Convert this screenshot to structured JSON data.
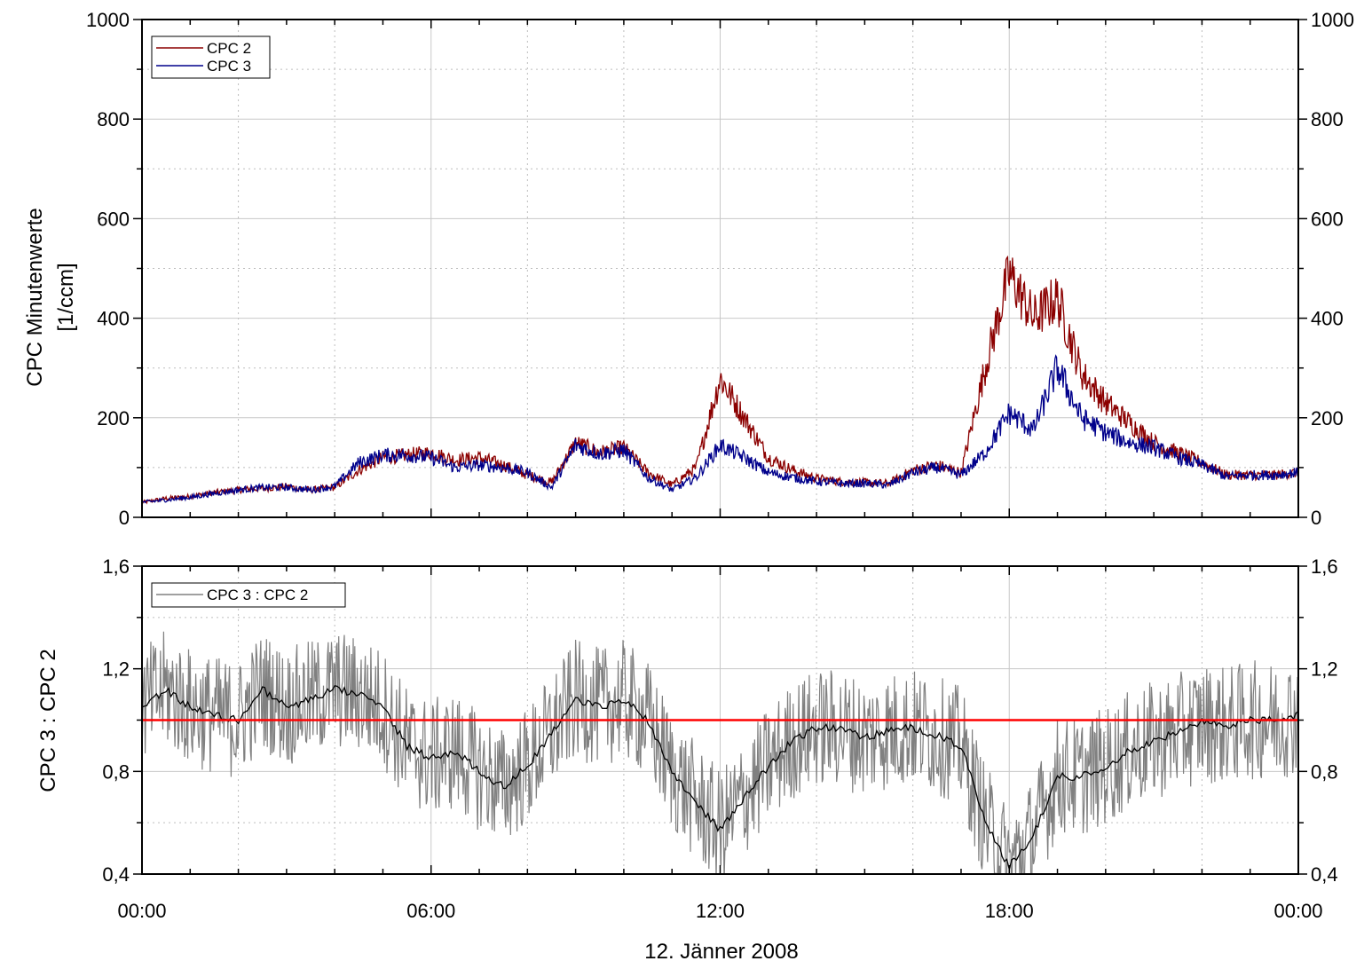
{
  "x_axis": {
    "label": "12. Jänner 2008",
    "tick_labels": [
      "00:00",
      "06:00",
      "12:00",
      "18:00",
      "00:00"
    ]
  },
  "chart_data": [
    {
      "type": "line",
      "title": "",
      "ylabel_lines": [
        "CPC Minutenwerte",
        "[1/ccm]"
      ],
      "xlim_hours": [
        0,
        24
      ],
      "ylim": [
        0,
        1000
      ],
      "y_tick_labels": [
        "0",
        "200",
        "400",
        "600",
        "800",
        "1000"
      ],
      "y_ticks": [
        0,
        200,
        400,
        600,
        800,
        1000
      ],
      "grid": true,
      "legend_position": "top-left",
      "x": [
        0,
        0.5,
        1,
        1.5,
        2,
        2.5,
        3,
        3.5,
        4,
        4.5,
        5,
        5.5,
        6,
        6.5,
        7,
        7.5,
        8,
        8.5,
        9,
        9.5,
        10,
        10.5,
        11,
        11.5,
        12,
        12.5,
        13,
        13.5,
        14,
        14.5,
        15,
        15.5,
        16,
        16.5,
        17,
        17.5,
        18,
        18.5,
        19,
        19.5,
        20,
        20.5,
        21,
        21.5,
        22,
        22.5,
        23,
        23.5,
        24
      ],
      "series": [
        {
          "name": "CPC 2",
          "color": "#8b0000",
          "values": [
            30,
            38,
            42,
            50,
            55,
            58,
            62,
            55,
            60,
            95,
            120,
            125,
            130,
            115,
            120,
            105,
            85,
            70,
            150,
            130,
            140,
            90,
            65,
            100,
            280,
            200,
            120,
            95,
            78,
            72,
            70,
            68,
            95,
            105,
            90,
            300,
            490,
            400,
            440,
            290,
            230,
            190,
            150,
            130,
            110,
            85,
            85,
            85,
            90
          ]
        },
        {
          "name": "CPC 3",
          "color": "#00008b",
          "values": [
            30,
            35,
            40,
            48,
            55,
            60,
            60,
            55,
            62,
            110,
            125,
            125,
            120,
            100,
            105,
            100,
            90,
            60,
            145,
            128,
            135,
            80,
            55,
            80,
            145,
            120,
            90,
            80,
            72,
            68,
            68,
            65,
            90,
            100,
            85,
            130,
            210,
            175,
            300,
            200,
            170,
            150,
            140,
            120,
            105,
            82,
            85,
            85,
            90
          ]
        }
      ]
    },
    {
      "type": "line",
      "title": "",
      "ylabel": "CPC 3 : CPC 2",
      "xlim_hours": [
        0,
        24
      ],
      "ylim": [
        0.4,
        1.6
      ],
      "y_tick_labels": [
        "0,4",
        "0,8",
        "1,2",
        "1,6"
      ],
      "y_ticks": [
        0.4,
        0.8,
        1.2,
        1.6
      ],
      "grid": true,
      "legend_position": "top-left",
      "reference_line": {
        "y": 1.0,
        "color": "#ff0000"
      },
      "x": [
        0,
        0.5,
        1,
        1.5,
        2,
        2.5,
        3,
        3.5,
        4,
        4.5,
        5,
        5.5,
        6,
        6.5,
        7,
        7.5,
        8,
        8.5,
        9,
        9.5,
        10,
        10.5,
        11,
        11.5,
        12,
        12.5,
        13,
        13.5,
        14,
        14.5,
        15,
        15.5,
        16,
        16.5,
        17,
        17.5,
        18,
        18.5,
        19,
        19.5,
        20,
        20.5,
        21,
        21.5,
        22,
        22.5,
        23,
        23.5,
        24
      ],
      "series": [
        {
          "name": "CPC 3 : CPC 2",
          "color": "#808080",
          "values": [
            1.05,
            1.12,
            1.05,
            1.02,
            1.0,
            1.12,
            1.05,
            1.08,
            1.12,
            1.1,
            1.05,
            0.9,
            0.85,
            0.88,
            0.8,
            0.74,
            0.82,
            0.95,
            1.08,
            1.05,
            1.08,
            1.0,
            0.8,
            0.68,
            0.57,
            0.7,
            0.82,
            0.92,
            0.97,
            0.97,
            0.93,
            0.96,
            0.97,
            0.94,
            0.9,
            0.6,
            0.43,
            0.55,
            0.78,
            0.78,
            0.82,
            0.88,
            0.92,
            0.95,
            0.99,
            0.98,
            1.0,
            1.0,
            1.02
          ]
        },
        {
          "name": "",
          "color": "#000000",
          "values": [
            1.05,
            1.12,
            1.05,
            1.02,
            1.0,
            1.12,
            1.05,
            1.08,
            1.12,
            1.1,
            1.05,
            0.9,
            0.85,
            0.88,
            0.8,
            0.74,
            0.82,
            0.95,
            1.08,
            1.05,
            1.08,
            1.0,
            0.8,
            0.68,
            0.57,
            0.7,
            0.82,
            0.92,
            0.97,
            0.97,
            0.93,
            0.96,
            0.97,
            0.94,
            0.9,
            0.6,
            0.43,
            0.55,
            0.78,
            0.78,
            0.82,
            0.88,
            0.92,
            0.95,
            0.99,
            0.98,
            1.0,
            1.0,
            1.02
          ]
        }
      ]
    }
  ]
}
